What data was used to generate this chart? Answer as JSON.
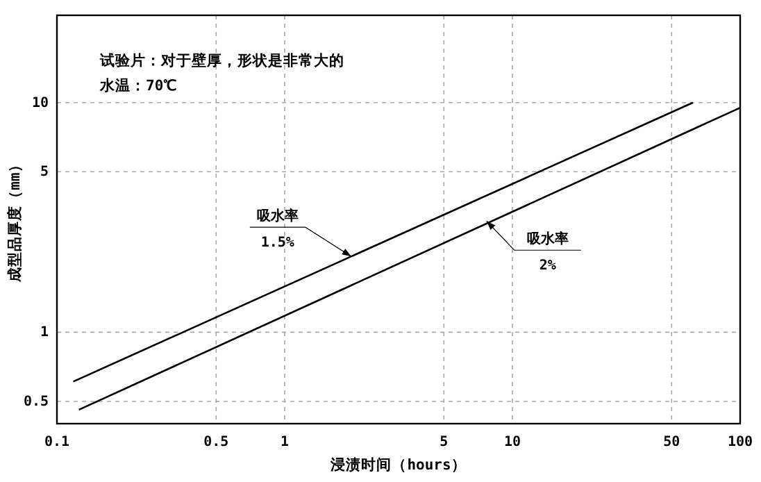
{
  "chart_data": {
    "type": "line",
    "title": "试验片：对于壁厚，形状是非常大的",
    "subtitle": "水温：70℃",
    "xlabel": "浸渍时间（hours）",
    "ylabel": "成型品厚度（mm）",
    "log": "xy",
    "grid": true,
    "marker": "none",
    "line_style": "solid",
    "xlim": [
      0.1,
      100
    ],
    "ylim": [
      0.4,
      24
    ],
    "xticks": [
      0.1,
      0.5,
      1,
      5,
      10,
      50,
      100
    ],
    "yticks": [
      0.5,
      1,
      5,
      10
    ],
    "series": [
      {
        "color": "#000000",
        "x": [
          0.118,
          62
        ],
        "values": [
          0.61,
          10
        ]
      },
      {
        "color": "#000000",
        "x": [
          0.125,
          100
        ],
        "values": [
          0.46,
          9.5
        ]
      }
    ],
    "annotations": [
      {
        "text": "吸水率\n1.5%",
        "x": 1.96,
        "y": 2.14
      },
      {
        "text": "吸水率\n2%",
        "x": 7.7,
        "y": 3.05
      }
    ]
  }
}
